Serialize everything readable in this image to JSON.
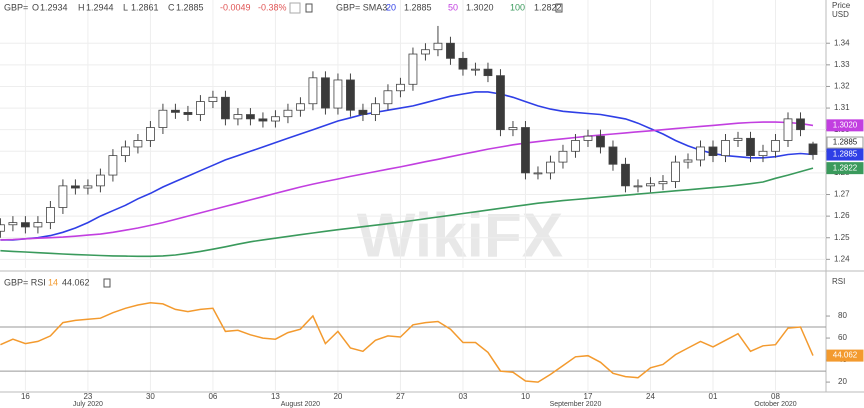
{
  "chart_data": {
    "type": "candlestick",
    "header": {
      "symbol": "GBP=",
      "open_label": "O",
      "high_label": "H",
      "low_label": "L",
      "close_label": "C",
      "change": "-0.0049",
      "change_pct": "-0.38%"
    },
    "axis_label": "Price",
    "currency": "USD",
    "watermark": "WikiFX",
    "categories": [
      null,
      null,
      "16",
      null,
      null,
      null,
      null,
      "23",
      null,
      null,
      null,
      null,
      "30",
      null,
      null,
      null,
      null,
      "06",
      null,
      null,
      null,
      null,
      "13",
      null,
      null,
      null,
      null,
      "20",
      null,
      null,
      null,
      null,
      "27",
      null,
      null,
      null,
      null,
      "03",
      null,
      null,
      null,
      null,
      "10",
      null,
      null,
      null,
      null,
      "17",
      null,
      null,
      null,
      null,
      "24",
      null,
      null,
      null,
      null,
      "01",
      null,
      null,
      null,
      null,
      "08",
      null,
      null,
      null
    ],
    "months": [
      null,
      null,
      null,
      null,
      null,
      null,
      null,
      "July 2020",
      null,
      null,
      null,
      null,
      null,
      null,
      null,
      null,
      null,
      null,
      null,
      null,
      null,
      null,
      null,
      null,
      "August 2020",
      null,
      null,
      null,
      null,
      null,
      null,
      null,
      null,
      null,
      null,
      null,
      null,
      null,
      null,
      null,
      null,
      null,
      null,
      null,
      null,
      null,
      "September 2020",
      null,
      null,
      null,
      null,
      null,
      null,
      null,
      null,
      null,
      null,
      null,
      null,
      null,
      null,
      null,
      "October 2020",
      null,
      null,
      null
    ],
    "candles": {
      "open": [
        1.253,
        1.256,
        1.257,
        1.255,
        1.257,
        1.264,
        1.274,
        1.273,
        1.274,
        1.279,
        1.288,
        1.292,
        1.295,
        1.301,
        1.309,
        1.308,
        1.307,
        1.313,
        1.315,
        1.305,
        1.307,
        1.305,
        1.304,
        1.306,
        1.309,
        1.312,
        1.324,
        1.31,
        1.323,
        1.309,
        1.307,
        1.312,
        1.318,
        1.321,
        1.335,
        1.337,
        1.34,
        1.333,
        1.328,
        1.328,
        1.325,
        1.3,
        1.301,
        1.28,
        1.28,
        1.285,
        1.29,
        1.295,
        1.297,
        1.292,
        1.284,
        1.274,
        1.274,
        1.275,
        1.276,
        1.285,
        1.286,
        1.292,
        1.288,
        1.295,
        1.296,
        1.288,
        1.29,
        1.295,
        1.305,
        1.2934
      ],
      "high": [
        1.259,
        1.26,
        1.26,
        1.26,
        1.267,
        1.277,
        1.277,
        1.277,
        1.282,
        1.291,
        1.295,
        1.298,
        1.304,
        1.312,
        1.312,
        1.311,
        1.316,
        1.318,
        1.318,
        1.31,
        1.31,
        1.308,
        1.309,
        1.312,
        1.315,
        1.327,
        1.327,
        1.326,
        1.326,
        1.312,
        1.315,
        1.321,
        1.324,
        1.338,
        1.34,
        1.348,
        1.343,
        1.336,
        1.331,
        1.331,
        1.328,
        1.304,
        1.304,
        1.283,
        1.288,
        1.293,
        1.298,
        1.3,
        1.3,
        1.295,
        1.287,
        1.277,
        1.278,
        1.279,
        1.288,
        1.289,
        1.295,
        1.295,
        1.298,
        1.299,
        1.299,
        1.293,
        1.298,
        1.308,
        1.308,
        1.2944
      ],
      "low": [
        1.25,
        1.253,
        1.252,
        1.252,
        1.254,
        1.261,
        1.27,
        1.27,
        1.271,
        1.276,
        1.285,
        1.289,
        1.292,
        1.298,
        1.305,
        1.304,
        1.304,
        1.31,
        1.302,
        1.302,
        1.302,
        1.301,
        1.301,
        1.303,
        1.306,
        1.309,
        1.307,
        1.307,
        1.306,
        1.304,
        1.304,
        1.309,
        1.315,
        1.318,
        1.332,
        1.334,
        1.33,
        1.325,
        1.325,
        1.322,
        1.297,
        1.297,
        1.277,
        1.277,
        1.277,
        1.282,
        1.287,
        1.292,
        1.289,
        1.281,
        1.271,
        1.271,
        1.271,
        1.272,
        1.273,
        1.282,
        1.283,
        1.285,
        1.285,
        1.292,
        1.285,
        1.285,
        1.287,
        1.292,
        1.297,
        1.2861
      ],
      "close": [
        1.256,
        1.257,
        1.255,
        1.257,
        1.264,
        1.274,
        1.273,
        1.274,
        1.279,
        1.288,
        1.292,
        1.295,
        1.301,
        1.309,
        1.308,
        1.307,
        1.313,
        1.315,
        1.305,
        1.307,
        1.305,
        1.304,
        1.306,
        1.309,
        1.312,
        1.324,
        1.31,
        1.323,
        1.309,
        1.307,
        1.312,
        1.318,
        1.321,
        1.335,
        1.337,
        1.34,
        1.333,
        1.328,
        1.328,
        1.325,
        1.3,
        1.301,
        1.28,
        1.28,
        1.285,
        1.29,
        1.295,
        1.297,
        1.292,
        1.284,
        1.274,
        1.274,
        1.275,
        1.276,
        1.285,
        1.286,
        1.292,
        1.288,
        1.295,
        1.296,
        1.288,
        1.29,
        1.295,
        1.305,
        1.3,
        1.2885
      ],
      "up_color": "#ffffff",
      "down_color": "#3a3a3a"
    },
    "indicator": "GBP= SMA3",
    "series": [
      {
        "name": "20",
        "color": "#2f3fe6",
        "last_label": "1.2885",
        "values": [
          1.249,
          1.249,
          1.2495,
          1.25,
          1.251,
          1.2525,
          1.2545,
          1.257,
          1.26,
          1.2625,
          1.265,
          1.268,
          1.2705,
          1.2735,
          1.276,
          1.2785,
          1.281,
          1.2835,
          1.286,
          1.288,
          1.29,
          1.292,
          1.294,
          1.296,
          1.298,
          1.3,
          1.302,
          1.304,
          1.3055,
          1.307,
          1.308,
          1.309,
          1.31,
          1.311,
          1.3125,
          1.314,
          1.3155,
          1.3165,
          1.3175,
          1.3175,
          1.3165,
          1.315,
          1.313,
          1.311,
          1.3095,
          1.3085,
          1.308,
          1.3075,
          1.307,
          1.306,
          1.305,
          1.303,
          1.3005,
          1.298,
          1.295,
          1.2925,
          1.2905,
          1.289,
          1.288,
          1.2875,
          1.287,
          1.287,
          1.2875,
          1.2885,
          1.289,
          1.2885
        ]
      },
      {
        "name": "50",
        "color": "#c23fe0",
        "last_label": "1.3020",
        "values": [
          1.249,
          1.2492,
          1.2495,
          1.2498,
          1.25,
          1.2503,
          1.2507,
          1.2512,
          1.2517,
          1.2525,
          1.2535,
          1.2545,
          1.2557,
          1.257,
          1.2585,
          1.26,
          1.2615,
          1.263,
          1.2645,
          1.266,
          1.2675,
          1.269,
          1.2705,
          1.272,
          1.2735,
          1.2748,
          1.276,
          1.2772,
          1.2784,
          1.2795,
          1.2806,
          1.2817,
          1.2828,
          1.284,
          1.2852,
          1.2863,
          1.2875,
          1.2887,
          1.2898,
          1.291,
          1.292,
          1.293,
          1.2938,
          1.2945,
          1.2952,
          1.2958,
          1.2964,
          1.297,
          1.2975,
          1.298,
          1.2985,
          1.299,
          1.2995,
          1.3,
          1.3005,
          1.301,
          1.3015,
          1.302,
          1.3025,
          1.303,
          1.3033,
          1.3035,
          1.3035,
          1.3033,
          1.3028,
          1.302
        ]
      },
      {
        "name": "100",
        "color": "#3a9a5c",
        "last_label": "1.2822",
        "values": [
          1.244,
          1.2437,
          1.2434,
          1.2431,
          1.2428,
          1.2425,
          1.2422,
          1.242,
          1.2418,
          1.2416,
          1.2415,
          1.2414,
          1.2414,
          1.2416,
          1.242,
          1.2428,
          1.2437,
          1.2447,
          1.2458,
          1.247,
          1.2481,
          1.249,
          1.2498,
          1.2506,
          1.2514,
          1.2522,
          1.253,
          1.2537,
          1.2544,
          1.2551,
          1.2558,
          1.2565,
          1.2572,
          1.258,
          1.2588,
          1.2596,
          1.2604,
          1.2612,
          1.262,
          1.2628,
          1.2636,
          1.2644,
          1.2652,
          1.266,
          1.2666,
          1.2672,
          1.2677,
          1.2682,
          1.2687,
          1.2692,
          1.2697,
          1.2702,
          1.2707,
          1.2712,
          1.2717,
          1.2722,
          1.2727,
          1.2732,
          1.2737,
          1.2743,
          1.275,
          1.2758,
          1.2775,
          1.279,
          1.2806,
          1.2822
        ]
      }
    ],
    "ylim": [
      1.236,
      1.36
    ],
    "yticks": [
      1.24,
      1.25,
      1.26,
      1.27,
      1.28,
      1.29,
      {
        "value": 1.3,
        "label": "1.30"
      },
      1.31,
      1.32,
      1.33,
      1.34
    ],
    "grid": true,
    "rsi": {
      "name": "GBP= RSI",
      "period": "14",
      "label": "RSI",
      "color": "#f39a2e",
      "values": [
        54,
        59,
        55,
        57,
        62,
        74,
        76,
        77,
        78,
        83,
        87,
        90,
        92,
        91,
        86,
        84,
        86,
        87,
        66,
        67,
        63,
        60,
        59,
        65,
        68,
        80,
        55,
        66,
        51,
        48,
        58,
        62,
        61,
        72,
        74,
        75,
        68,
        56,
        56,
        47,
        30,
        29,
        21,
        20,
        27,
        35,
        43,
        44,
        38,
        28,
        25,
        24,
        33,
        36,
        45,
        51,
        57,
        52,
        58,
        64,
        48,
        53,
        54,
        69,
        70,
        44.062
      ],
      "ylim": [
        11,
        120
      ],
      "yticks": [
        20,
        40,
        60,
        80
      ],
      "levels": [
        70,
        30
      ]
    }
  }
}
